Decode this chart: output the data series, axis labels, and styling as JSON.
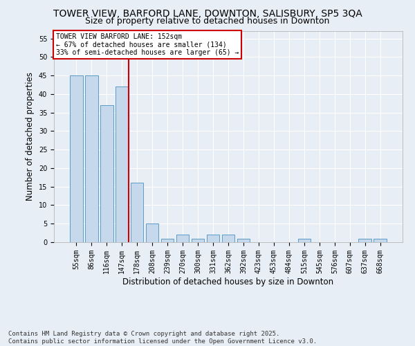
{
  "title_line1": "TOWER VIEW, BARFORD LANE, DOWNTON, SALISBURY, SP5 3QA",
  "title_line2": "Size of property relative to detached houses in Downton",
  "xlabel": "Distribution of detached houses by size in Downton",
  "ylabel": "Number of detached properties",
  "categories": [
    "55sqm",
    "86sqm",
    "116sqm",
    "147sqm",
    "178sqm",
    "208sqm",
    "239sqm",
    "270sqm",
    "300sqm",
    "331sqm",
    "362sqm",
    "392sqm",
    "423sqm",
    "453sqm",
    "484sqm",
    "515sqm",
    "545sqm",
    "576sqm",
    "607sqm",
    "637sqm",
    "668sqm"
  ],
  "values": [
    45,
    45,
    37,
    42,
    16,
    5,
    1,
    2,
    1,
    2,
    2,
    1,
    0,
    0,
    0,
    1,
    0,
    0,
    0,
    1,
    1
  ],
  "bar_color": "#c5d8ec",
  "bar_edge_color": "#5a9bc7",
  "vline_color": "#cc0000",
  "annotation_text": "TOWER VIEW BARFORD LANE: 152sqm\n← 67% of detached houses are smaller (134)\n33% of semi-detached houses are larger (65) →",
  "annotation_box_color": "white",
  "annotation_box_edge": "#cc0000",
  "ylim": [
    0,
    57
  ],
  "yticks": [
    0,
    5,
    10,
    15,
    20,
    25,
    30,
    35,
    40,
    45,
    50,
    55
  ],
  "footer_text": "Contains HM Land Registry data © Crown copyright and database right 2025.\nContains public sector information licensed under the Open Government Licence v3.0.",
  "bg_color": "#e8eef5",
  "plot_bg_color": "#e8eef5",
  "grid_color": "white",
  "title_fontsize": 10,
  "subtitle_fontsize": 9,
  "tick_fontsize": 7,
  "label_fontsize": 8.5,
  "footer_fontsize": 6.5,
  "vline_bar_index": 3
}
